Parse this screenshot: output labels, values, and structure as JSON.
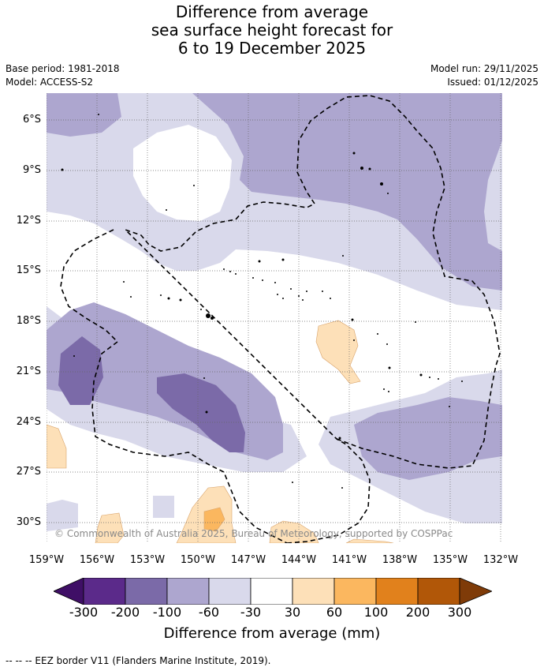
{
  "title": {
    "line1": "Difference from average",
    "line2": "sea surface height forecast for",
    "line3": "6 to 19 December 2025"
  },
  "meta": {
    "base_period": "Base period: 1981-2018",
    "model": "Model: ACCESS-S2",
    "model_run": "Model run: 29/11/2025",
    "issued": "Issued: 01/12/2025"
  },
  "map": {
    "copyright": "© Commonwealth of Australia 2025, Bureau of Meteorology, supported by COSPPac",
    "lat_labels": [
      "6°S",
      "9°S",
      "12°S",
      "15°S",
      "18°S",
      "21°S",
      "24°S",
      "27°S",
      "30°S"
    ],
    "lon_labels": [
      "159°W",
      "156°W",
      "153°W",
      "150°W",
      "147°W",
      "144°W",
      "141°W",
      "138°W",
      "135°W",
      "132°W"
    ]
  },
  "colorbar": {
    "title": "Difference from average (mm)",
    "labels": [
      "-300",
      "-200",
      "-100",
      "-60",
      "-30",
      "30",
      "60",
      "100",
      "200",
      "300"
    ],
    "colors": [
      "#3f0f66",
      "#5b2a8a",
      "#7b6aa8",
      "#ada6cf",
      "#d9d9eb",
      "#ffffff",
      "#fde0b8",
      "#fbb75f",
      "#e1811c",
      "#b15708",
      "#7f3b08"
    ]
  },
  "legend": {
    "eez": "--  --  -- EEZ border V11 (Flanders Marine Institute, 2019)."
  }
}
